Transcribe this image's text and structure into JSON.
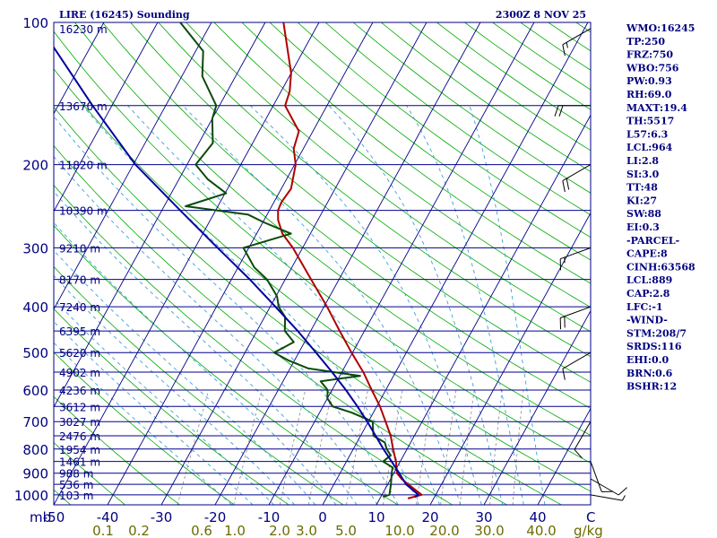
{
  "chart_data": {
    "type": "line",
    "title": "LIRE (16245) Sounding",
    "timestamp": "2300Z  8 NOV 25",
    "pressure_levels": [
      100,
      200,
      300,
      400,
      500,
      600,
      700,
      800,
      900,
      1000
    ],
    "pressure_labels": [
      "100",
      "200",
      "300",
      "400",
      "500",
      "600",
      "700",
      "800",
      "900",
      "1000"
    ],
    "temperature_ticks": [
      -50,
      -40,
      -30,
      -20,
      -10,
      0,
      10,
      20,
      30,
      40
    ],
    "temperature_labels": [
      "-50",
      "-40",
      "-30",
      "-20",
      "-10",
      "0",
      "10",
      "20",
      "30",
      "40"
    ],
    "x_axis_unit": "C",
    "y_axis_unit": "mb",
    "mixing_ratio_labels": [
      "0.1",
      "0.2",
      "0.6",
      "1.0",
      "2.0",
      "3.0",
      "5.0",
      "10.0",
      "20.0",
      "30.0",
      "40.0"
    ],
    "mixing_ratio_unit": "g/kg",
    "height_labels": [
      {
        "p": 103,
        "label": "16230 m"
      },
      {
        "p": 150,
        "label": "13670 m"
      },
      {
        "p": 200,
        "label": "11820 m"
      },
      {
        "p": 250,
        "label": "10390 m"
      },
      {
        "p": 300,
        "label": "9210 m"
      },
      {
        "p": 350,
        "label": "8170 m"
      },
      {
        "p": 400,
        "label": "7240 m"
      },
      {
        "p": 450,
        "label": "6395 m"
      },
      {
        "p": 500,
        "label": "5620 m"
      },
      {
        "p": 550,
        "label": "4902 m"
      },
      {
        "p": 600,
        "label": "4236 m"
      },
      {
        "p": 650,
        "label": "3612 m"
      },
      {
        "p": 700,
        "label": "3027 m"
      },
      {
        "p": 750,
        "label": "2476 m"
      },
      {
        "p": 800,
        "label": "1954 m"
      },
      {
        "p": 850,
        "label": "1461 m"
      },
      {
        "p": 900,
        "label": "988 m"
      },
      {
        "p": 950,
        "label": "536 m"
      },
      {
        "p": 1000,
        "label": "103 m"
      }
    ],
    "series": [
      {
        "name": "Temperature",
        "color": "#b00000",
        "points": [
          [
            1018,
            15.2
          ],
          [
            1000,
            17.4
          ],
          [
            950,
            13.8
          ],
          [
            925,
            12.0
          ],
          [
            900,
            10.6
          ],
          [
            850,
            9.2
          ],
          [
            800,
            7.4
          ],
          [
            750,
            5.6
          ],
          [
            700,
            3.2
          ],
          [
            650,
            0.6
          ],
          [
            600,
            -2.6
          ],
          [
            550,
            -6.0
          ],
          [
            500,
            -10.2
          ],
          [
            450,
            -14.6
          ],
          [
            400,
            -19.4
          ],
          [
            350,
            -25.2
          ],
          [
            300,
            -31.8
          ],
          [
            280,
            -35.2
          ],
          [
            262,
            -37.4
          ],
          [
            250,
            -38.4
          ],
          [
            240,
            -38.6
          ],
          [
            225,
            -38.2
          ],
          [
            200,
            -39.8
          ],
          [
            185,
            -41.8
          ],
          [
            170,
            -42.6
          ],
          [
            150,
            -47.8
          ],
          [
            140,
            -48.4
          ],
          [
            128,
            -50.0
          ],
          [
            100,
            -56.6
          ]
        ]
      },
      {
        "name": "Dewpoint",
        "color": "#0a4a0a",
        "points": [
          [
            1010,
            10.4
          ],
          [
            1000,
            11.4
          ],
          [
            950,
            10.6
          ],
          [
            900,
            9.6
          ],
          [
            875,
            9.2
          ],
          [
            850,
            6.8
          ],
          [
            825,
            7.6
          ],
          [
            800,
            6.2
          ],
          [
            775,
            5.2
          ],
          [
            750,
            2.4
          ],
          [
            725,
            1.6
          ],
          [
            700,
            0.8
          ],
          [
            670,
            -4.0
          ],
          [
            650,
            -8.2
          ],
          [
            625,
            -10.0
          ],
          [
            600,
            -10.8
          ],
          [
            575,
            -13.0
          ],
          [
            560,
            -6.2
          ],
          [
            540,
            -16.6
          ],
          [
            520,
            -21.0
          ],
          [
            500,
            -24.6
          ],
          [
            475,
            -22.0
          ],
          [
            450,
            -24.8
          ],
          [
            420,
            -26.2
          ],
          [
            400,
            -28.4
          ],
          [
            380,
            -29.8
          ],
          [
            350,
            -33.4
          ],
          [
            330,
            -37.0
          ],
          [
            300,
            -41.0
          ],
          [
            280,
            -33.6
          ],
          [
            265,
            -39.8
          ],
          [
            255,
            -43.6
          ],
          [
            245,
            -56.0
          ],
          [
            230,
            -49.8
          ],
          [
            215,
            -54.6
          ],
          [
            200,
            -58.4
          ],
          [
            180,
            -57.4
          ],
          [
            160,
            -60.0
          ],
          [
            150,
            -60.6
          ],
          [
            130,
            -66.2
          ],
          [
            115,
            -68.6
          ],
          [
            100,
            -75.8
          ]
        ]
      },
      {
        "name": "Parcel",
        "color": "#0000a0",
        "points": [
          [
            1010,
            16.4
          ],
          [
            1000,
            16.8
          ],
          [
            950,
            13.4
          ],
          [
            900,
            11.0
          ],
          [
            850,
            8.4
          ],
          [
            800,
            5.6
          ],
          [
            750,
            2.8
          ],
          [
            700,
            -0.2
          ],
          [
            650,
            -3.6
          ],
          [
            600,
            -7.4
          ],
          [
            550,
            -11.8
          ],
          [
            500,
            -16.8
          ],
          [
            450,
            -22.4
          ],
          [
            400,
            -29.0
          ],
          [
            350,
            -36.6
          ],
          [
            300,
            -45.8
          ],
          [
            250,
            -56.6
          ],
          [
            200,
            -69.6
          ],
          [
            150,
            -83.6
          ],
          [
            110,
            -98.0
          ]
        ]
      }
    ],
    "indices": [
      "WMO:16245",
      "TP:250",
      "FRZ:750",
      "WBO:756",
      "PW:0.93",
      "RH:69.0",
      "MAXT:19.4",
      "TH:5517",
      "L57:6.3",
      "LCL:964",
      "LI:2.8",
      "SI:3.0",
      "TT:48",
      "KI:27",
      "SW:88",
      "EI:0.3",
      "-PARCEL-",
      "CAPE:8",
      "CINH:63568",
      "LCL:889",
      "CAP:2.8",
      "LFC:-1",
      "-WIND-",
      "STM:208/7",
      "SRDS:116",
      "EHI:0.0",
      "BRN:0.6",
      "BSHR:12"
    ],
    "wind_barbs": [
      {
        "p": 103,
        "dir": 240,
        "speed": 15
      },
      {
        "p": 150,
        "dir": 270,
        "speed": 20
      },
      {
        "p": 200,
        "dir": 240,
        "speed": 20
      },
      {
        "p": 300,
        "dir": 250,
        "speed": 15
      },
      {
        "p": 400,
        "dir": 250,
        "speed": 20
      },
      {
        "p": 500,
        "dir": 240,
        "speed": 10
      },
      {
        "p": 700,
        "dir": 210,
        "speed": 10
      },
      {
        "p": 850,
        "dir": 160,
        "speed": 10
      },
      {
        "p": 925,
        "dir": 120,
        "speed": 10
      },
      {
        "p": 1000,
        "dir": 100,
        "speed": 5
      }
    ]
  },
  "colors": {
    "axis": "#000080",
    "isobar": "#00008b",
    "isotherm": "#00008b",
    "dry_adiabat": "#00aa00",
    "moist_adiabat": "#3ca0d8",
    "mixing_ratio": "#8a8a8a",
    "mixing_label": "#6b6b00",
    "barb": "#000000"
  }
}
